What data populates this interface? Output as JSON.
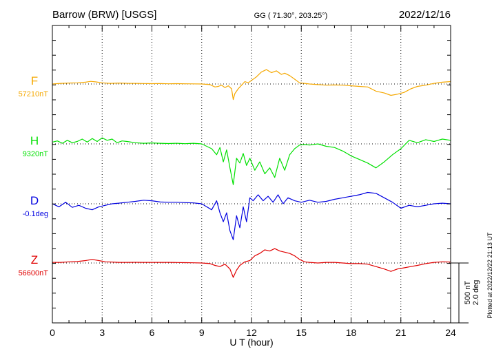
{
  "header": {
    "station": "Barrow (BRW)  [USGS]",
    "coords": "GG ( 71.30°, 203.25°)",
    "date": "2022/12/16"
  },
  "side_note": "Plotted at 2022/12/22 21:13 UT",
  "scale": {
    "line1": "500 nT",
    "line2": "2.0 deg"
  },
  "chart_data": {
    "type": "line",
    "xlabel": "U T (hour)",
    "xlim": [
      0,
      24
    ],
    "xticks": [
      0,
      3,
      6,
      9,
      12,
      15,
      18,
      21,
      24
    ],
    "grid": true,
    "series": [
      {
        "name": "F",
        "baseline_label": "57210nT",
        "color": "#f5a800",
        "baseline": 57210,
        "unit": "nT",
        "points": [
          [
            0,
            0
          ],
          [
            0.5,
            5
          ],
          [
            1,
            8
          ],
          [
            1.5,
            10
          ],
          [
            2,
            15
          ],
          [
            2.3,
            22
          ],
          [
            2.6,
            18
          ],
          [
            3,
            10
          ],
          [
            3.5,
            5
          ],
          [
            4,
            8
          ],
          [
            4.5,
            6
          ],
          [
            5,
            5
          ],
          [
            5.5,
            4
          ],
          [
            6,
            3
          ],
          [
            6.5,
            4
          ],
          [
            7,
            2
          ],
          [
            7.5,
            3
          ],
          [
            8,
            2
          ],
          [
            8.5,
            1
          ],
          [
            9,
            0
          ],
          [
            9.5,
            -5
          ],
          [
            9.8,
            -25
          ],
          [
            10,
            -20
          ],
          [
            10.2,
            -10
          ],
          [
            10.4,
            -30
          ],
          [
            10.6,
            -15
          ],
          [
            10.8,
            -40
          ],
          [
            10.9,
            -130
          ],
          [
            11,
            -80
          ],
          [
            11.2,
            -40
          ],
          [
            11.4,
            -10
          ],
          [
            11.6,
            20
          ],
          [
            11.8,
            10
          ],
          [
            12,
            30
          ],
          [
            12.3,
            60
          ],
          [
            12.6,
            100
          ],
          [
            12.9,
            120
          ],
          [
            13.2,
            95
          ],
          [
            13.5,
            110
          ],
          [
            13.8,
            80
          ],
          [
            14,
            90
          ],
          [
            14.3,
            70
          ],
          [
            14.6,
            40
          ],
          [
            14.9,
            10
          ],
          [
            15.2,
            5
          ],
          [
            15.5,
            0
          ],
          [
            16,
            -5
          ],
          [
            16.5,
            -10
          ],
          [
            17,
            -8
          ],
          [
            17.5,
            -10
          ],
          [
            18,
            -15
          ],
          [
            18.5,
            -20
          ],
          [
            19,
            -25
          ],
          [
            19.5,
            -60
          ],
          [
            20,
            -75
          ],
          [
            20.4,
            -95
          ],
          [
            20.8,
            -85
          ],
          [
            21.2,
            -70
          ],
          [
            21.6,
            -40
          ],
          [
            22,
            -20
          ],
          [
            22.5,
            -10
          ],
          [
            23,
            5
          ],
          [
            23.5,
            15
          ],
          [
            24,
            20
          ]
        ]
      },
      {
        "name": "H",
        "baseline_label": "9320nT",
        "color": "#00e000",
        "baseline": 9320,
        "unit": "nT",
        "points": [
          [
            0,
            15
          ],
          [
            0.3,
            25
          ],
          [
            0.6,
            5
          ],
          [
            0.9,
            30
          ],
          [
            1.2,
            10
          ],
          [
            1.5,
            20
          ],
          [
            1.8,
            40
          ],
          [
            2.1,
            15
          ],
          [
            2.4,
            45
          ],
          [
            2.7,
            20
          ],
          [
            3,
            50
          ],
          [
            3.3,
            30
          ],
          [
            3.6,
            40
          ],
          [
            3.9,
            10
          ],
          [
            4.2,
            25
          ],
          [
            4.5,
            20
          ],
          [
            5,
            10
          ],
          [
            5.5,
            5
          ],
          [
            6,
            8
          ],
          [
            6.5,
            5
          ],
          [
            7,
            3
          ],
          [
            7.5,
            5
          ],
          [
            8,
            2
          ],
          [
            8.5,
            5
          ],
          [
            9,
            0
          ],
          [
            9.3,
            -20
          ],
          [
            9.6,
            -40
          ],
          [
            9.9,
            -90
          ],
          [
            10.1,
            -30
          ],
          [
            10.3,
            -150
          ],
          [
            10.5,
            -50
          ],
          [
            10.7,
            -200
          ],
          [
            10.9,
            -340
          ],
          [
            11.1,
            -120
          ],
          [
            11.3,
            -160
          ],
          [
            11.5,
            -80
          ],
          [
            11.7,
            -180
          ],
          [
            11.9,
            -120
          ],
          [
            12.2,
            -220
          ],
          [
            12.5,
            -150
          ],
          [
            12.8,
            -250
          ],
          [
            13.1,
            -200
          ],
          [
            13.4,
            -280
          ],
          [
            13.7,
            -120
          ],
          [
            14,
            -220
          ],
          [
            14.3,
            -90
          ],
          [
            14.6,
            -40
          ],
          [
            14.9,
            -10
          ],
          [
            15.2,
            -5
          ],
          [
            15.5,
            -10
          ],
          [
            16,
            0
          ],
          [
            16.5,
            -20
          ],
          [
            17,
            -30
          ],
          [
            17.5,
            -60
          ],
          [
            18,
            -100
          ],
          [
            18.5,
            -130
          ],
          [
            19,
            -160
          ],
          [
            19.5,
            -200
          ],
          [
            20,
            -150
          ],
          [
            20.5,
            -90
          ],
          [
            21,
            -40
          ],
          [
            21.5,
            30
          ],
          [
            22,
            10
          ],
          [
            22.5,
            35
          ],
          [
            23,
            20
          ],
          [
            23.5,
            40
          ],
          [
            24,
            30
          ]
        ]
      },
      {
        "name": "D",
        "baseline_label": "-0.1deg",
        "color": "#0000e0",
        "baseline": -0.1,
        "unit": "deg",
        "points": [
          [
            0,
            0
          ],
          [
            0.4,
            -0.1
          ],
          [
            0.8,
            0.05
          ],
          [
            1.2,
            -0.12
          ],
          [
            1.6,
            -0.05
          ],
          [
            2,
            -0.15
          ],
          [
            2.4,
            -0.2
          ],
          [
            2.8,
            -0.1
          ],
          [
            3.2,
            -0.05
          ],
          [
            3.6,
            0
          ],
          [
            4,
            0.02
          ],
          [
            4.5,
            0.05
          ],
          [
            5,
            0.08
          ],
          [
            5.5,
            0.12
          ],
          [
            6,
            0.1
          ],
          [
            6.5,
            0.06
          ],
          [
            7,
            0.05
          ],
          [
            7.5,
            0.05
          ],
          [
            8,
            0.04
          ],
          [
            8.5,
            0.03
          ],
          [
            9,
            0
          ],
          [
            9.3,
            -0.1
          ],
          [
            9.6,
            -0.2
          ],
          [
            9.9,
            0.1
          ],
          [
            10.1,
            -0.3
          ],
          [
            10.3,
            -0.6
          ],
          [
            10.5,
            -0.3
          ],
          [
            10.7,
            -0.9
          ],
          [
            10.9,
            -1.2
          ],
          [
            11.1,
            -0.4
          ],
          [
            11.3,
            -0.8
          ],
          [
            11.5,
            -0.1
          ],
          [
            11.7,
            -0.6
          ],
          [
            11.9,
            0.2
          ],
          [
            12.1,
            0.1
          ],
          [
            12.4,
            0.3
          ],
          [
            12.7,
            0.1
          ],
          [
            13,
            0.25
          ],
          [
            13.3,
            0.05
          ],
          [
            13.6,
            0.3
          ],
          [
            13.9,
            0
          ],
          [
            14.2,
            0.2
          ],
          [
            14.6,
            0.1
          ],
          [
            15,
            0.05
          ],
          [
            15.5,
            0.12
          ],
          [
            16,
            0.05
          ],
          [
            16.5,
            0.08
          ],
          [
            17,
            0.15
          ],
          [
            17.5,
            0.2
          ],
          [
            18,
            0.25
          ],
          [
            18.5,
            0.3
          ],
          [
            19,
            0.38
          ],
          [
            19.5,
            0.35
          ],
          [
            20,
            0.2
          ],
          [
            20.5,
            0.05
          ],
          [
            21,
            -0.15
          ],
          [
            21.5,
            -0.05
          ],
          [
            22,
            -0.1
          ],
          [
            22.5,
            -0.05
          ],
          [
            23,
            0
          ],
          [
            23.5,
            0.02
          ],
          [
            24,
            0
          ]
        ]
      },
      {
        "name": "Z",
        "baseline_label": "56600nT",
        "color": "#e00000",
        "baseline": 56600,
        "unit": "nT",
        "points": [
          [
            0,
            5
          ],
          [
            0.5,
            5
          ],
          [
            1,
            10
          ],
          [
            1.5,
            12
          ],
          [
            2,
            20
          ],
          [
            2.4,
            30
          ],
          [
            2.8,
            20
          ],
          [
            3.2,
            10
          ],
          [
            3.6,
            8
          ],
          [
            4,
            5
          ],
          [
            4.5,
            5
          ],
          [
            5,
            6
          ],
          [
            5.5,
            5
          ],
          [
            6,
            5
          ],
          [
            6.5,
            5
          ],
          [
            7,
            5
          ],
          [
            7.5,
            4
          ],
          [
            8,
            3
          ],
          [
            8.5,
            2
          ],
          [
            9,
            0
          ],
          [
            9.5,
            -5
          ],
          [
            9.8,
            -20
          ],
          [
            10.1,
            -30
          ],
          [
            10.4,
            -10
          ],
          [
            10.7,
            -50
          ],
          [
            10.9,
            -120
          ],
          [
            11.1,
            -60
          ],
          [
            11.3,
            -20
          ],
          [
            11.6,
            10
          ],
          [
            11.9,
            20
          ],
          [
            12.2,
            60
          ],
          [
            12.5,
            80
          ],
          [
            12.8,
            110
          ],
          [
            13.1,
            100
          ],
          [
            13.4,
            120
          ],
          [
            13.7,
            100
          ],
          [
            14,
            90
          ],
          [
            14.3,
            80
          ],
          [
            14.6,
            60
          ],
          [
            14.9,
            30
          ],
          [
            15.2,
            10
          ],
          [
            15.5,
            5
          ],
          [
            16,
            0
          ],
          [
            16.5,
            5
          ],
          [
            17,
            5
          ],
          [
            17.5,
            0
          ],
          [
            18,
            -5
          ],
          [
            18.5,
            -5
          ],
          [
            19,
            -10
          ],
          [
            19.5,
            -30
          ],
          [
            20,
            -50
          ],
          [
            20.4,
            -70
          ],
          [
            20.8,
            -50
          ],
          [
            21.2,
            -40
          ],
          [
            21.6,
            -30
          ],
          [
            22,
            -20
          ],
          [
            22.5,
            -5
          ],
          [
            23,
            5
          ],
          [
            23.5,
            10
          ],
          [
            24,
            8
          ]
        ]
      }
    ]
  }
}
